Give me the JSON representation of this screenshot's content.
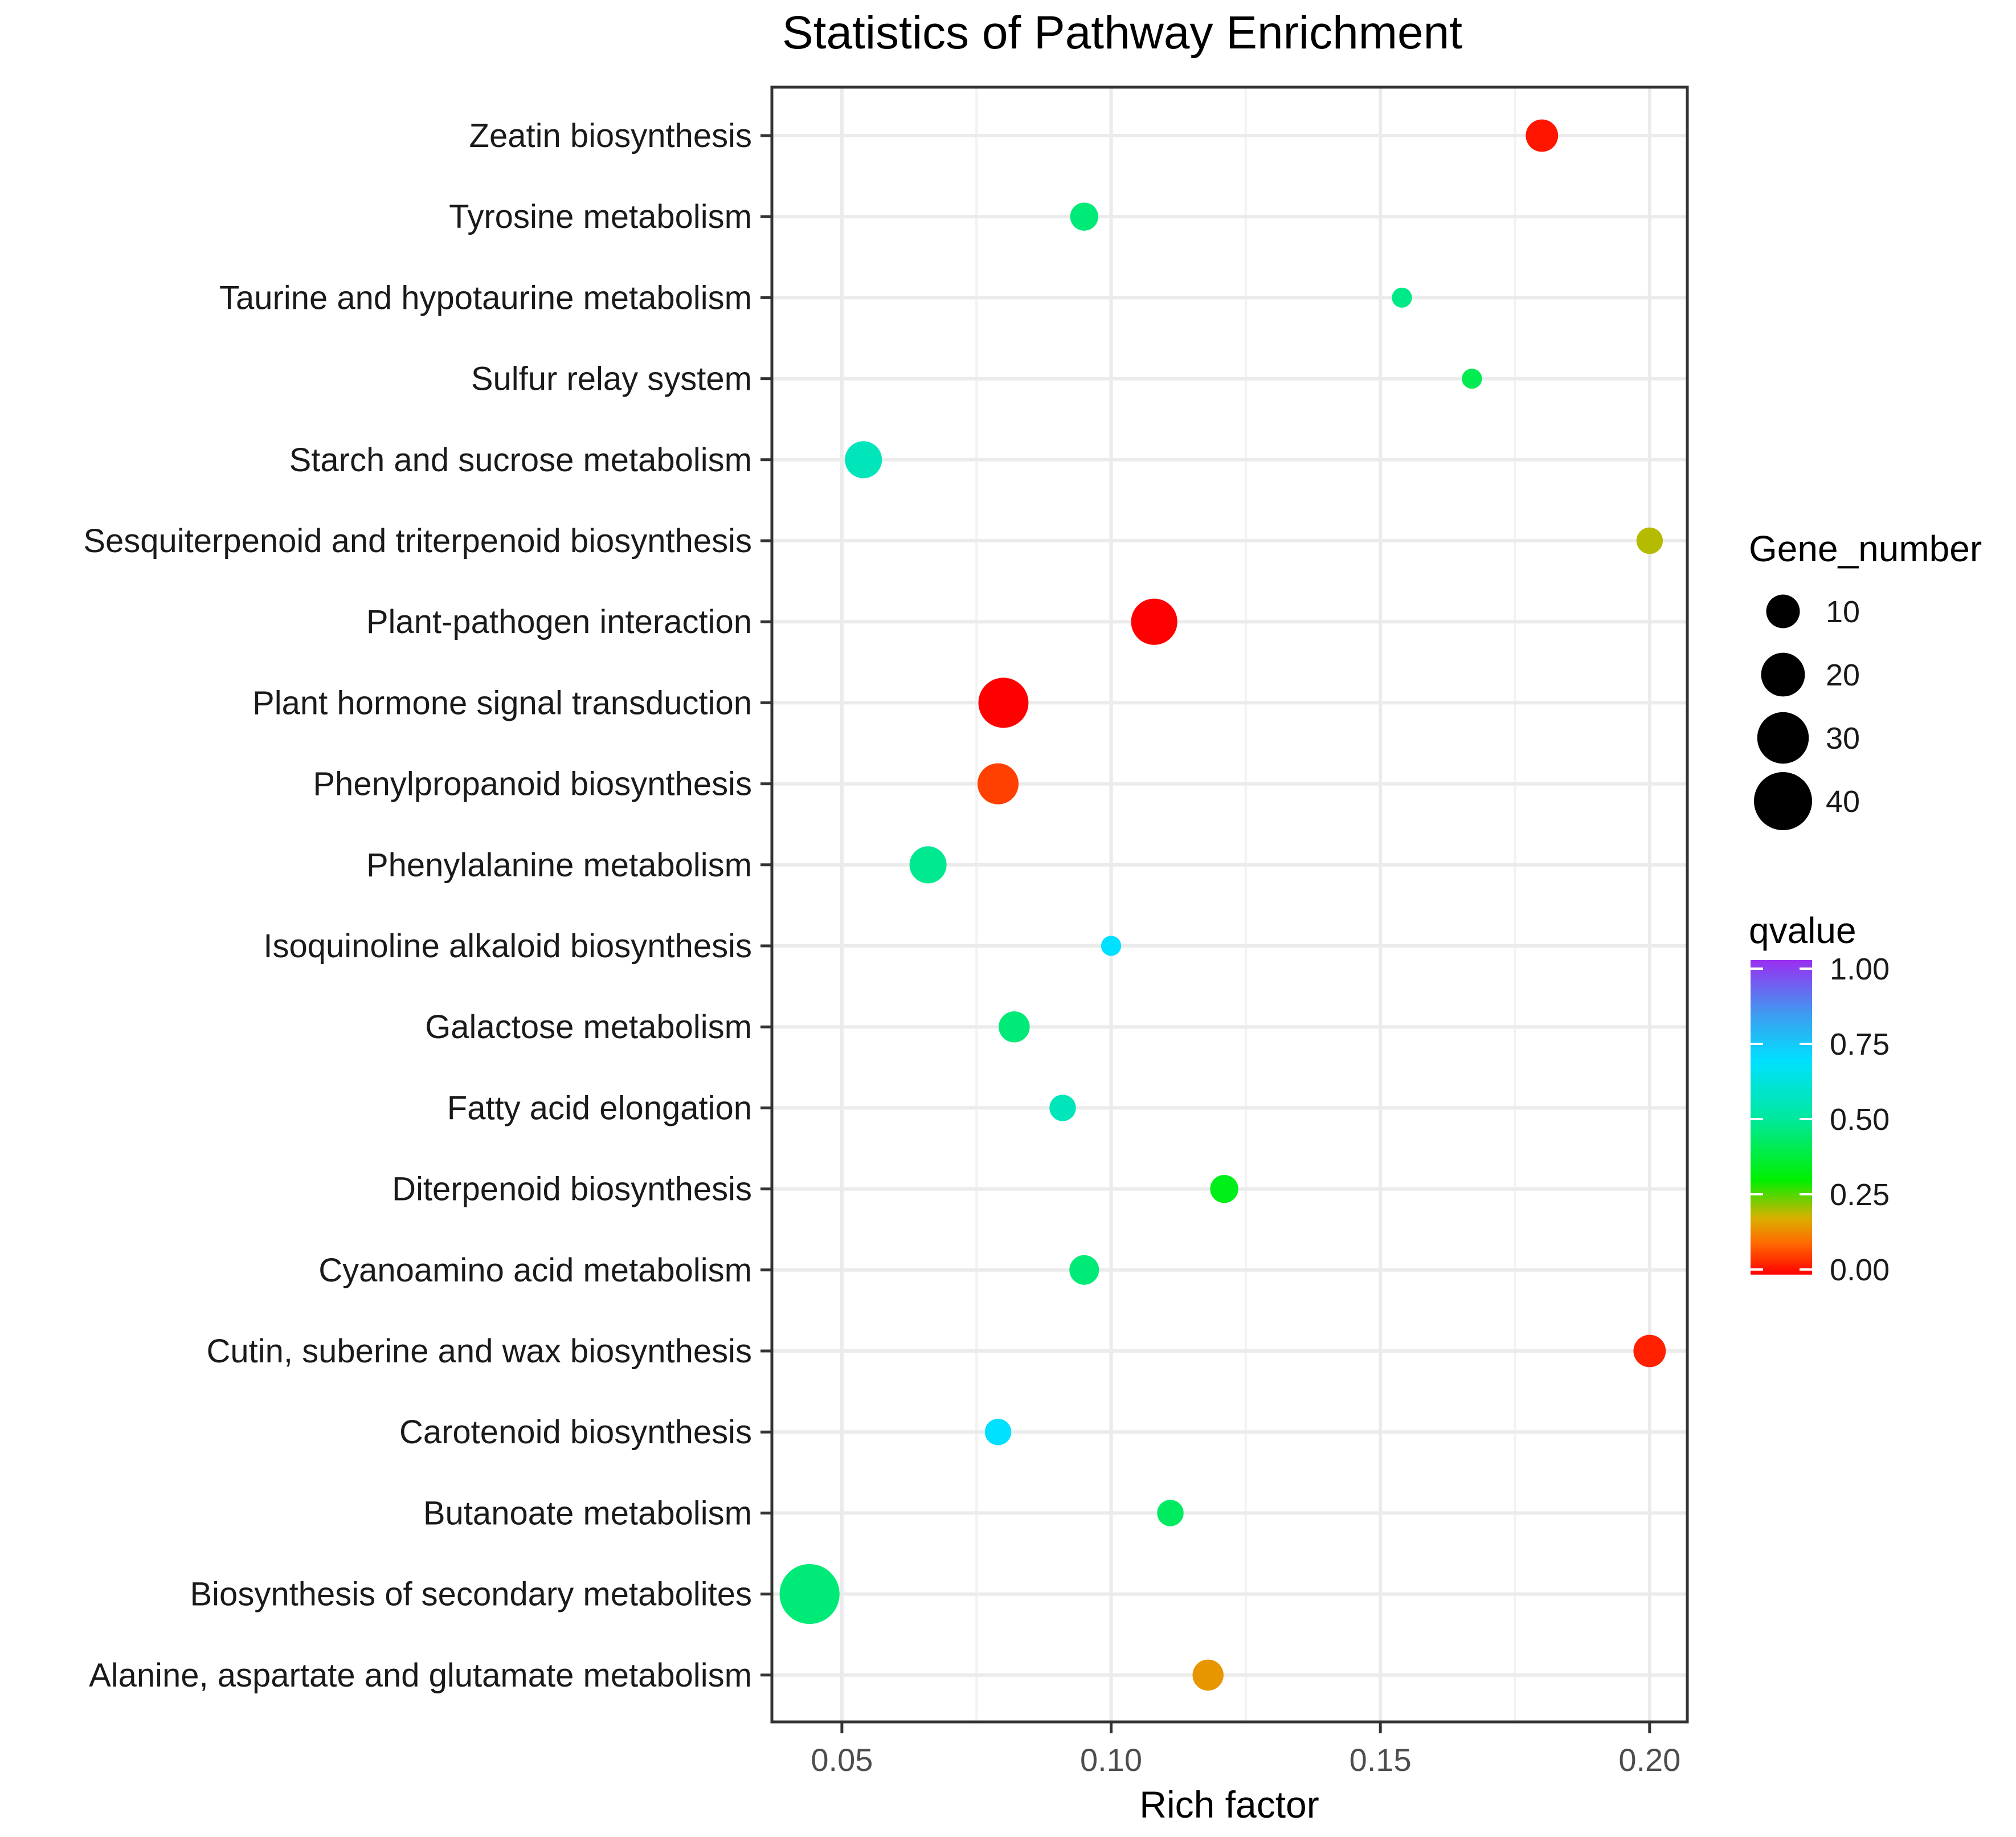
{
  "chart_data": {
    "type": "scatter",
    "title": "Statistics of Pathway Enrichment",
    "xlabel": "Rich factor",
    "ylabel": "",
    "xlim": [
      0.037,
      0.207
    ],
    "xticks": [
      0.05,
      0.1,
      0.15,
      0.2
    ],
    "xtick_labels": [
      "0.05",
      "0.10",
      "0.15",
      "0.20"
    ],
    "grid": true,
    "categories": [
      "Zeatin biosynthesis",
      "Tyrosine metabolism",
      "Taurine and hypotaurine metabolism",
      "Sulfur relay system",
      "Starch and sucrose metabolism",
      "Sesquiterpenoid and triterpenoid biosynthesis",
      "Plant-pathogen interaction",
      "Plant hormone signal transduction",
      "Phenylpropanoid biosynthesis",
      "Phenylalanine metabolism",
      "Isoquinoline alkaloid biosynthesis",
      "Galactose metabolism",
      "Fatty acid elongation",
      "Diterpenoid biosynthesis",
      "Cyanoamino acid metabolism",
      "Cutin, suberine and wax biosynthesis",
      "Carotenoid biosynthesis",
      "Butanoate metabolism",
      "Biosynthesis of secondary metabolites",
      "Alanine, aspartate and glutamate metabolism"
    ],
    "points": [
      {
        "pathway": "Zeatin biosynthesis",
        "rich_factor": 0.18,
        "gene_number": 9,
        "qvalue": 0.02
      },
      {
        "pathway": "Tyrosine metabolism",
        "rich_factor": 0.095,
        "gene_number": 6,
        "qvalue": 0.45
      },
      {
        "pathway": "Taurine and hypotaurine metabolism",
        "rich_factor": 0.154,
        "gene_number": 2,
        "qvalue": 0.47
      },
      {
        "pathway": "Sulfur relay system",
        "rich_factor": 0.167,
        "gene_number": 2,
        "qvalue": 0.4
      },
      {
        "pathway": "Starch and sucrose metabolism",
        "rich_factor": 0.054,
        "gene_number": 13,
        "qvalue": 0.55
      },
      {
        "pathway": "Sesquiterpenoid and triterpenoid biosynthesis",
        "rich_factor": 0.2,
        "gene_number": 5,
        "qvalue": 0.2
      },
      {
        "pathway": "Plant-pathogen interaction",
        "rich_factor": 0.108,
        "gene_number": 23,
        "qvalue": 0.0
      },
      {
        "pathway": "Plant hormone signal transduction",
        "rich_factor": 0.08,
        "gene_number": 28,
        "qvalue": 0.0
      },
      {
        "pathway": "Phenylpropanoid biosynthesis",
        "rich_factor": 0.079,
        "gene_number": 17,
        "qvalue": 0.06
      },
      {
        "pathway": "Phenylalanine metabolism",
        "rich_factor": 0.066,
        "gene_number": 13,
        "qvalue": 0.48
      },
      {
        "pathway": "Isoquinoline alkaloid biosynthesis",
        "rich_factor": 0.1,
        "gene_number": 2,
        "qvalue": 0.68
      },
      {
        "pathway": "Galactose metabolism",
        "rich_factor": 0.082,
        "gene_number": 8,
        "qvalue": 0.45
      },
      {
        "pathway": "Fatty acid elongation",
        "rich_factor": 0.091,
        "gene_number": 5,
        "qvalue": 0.55
      },
      {
        "pathway": "Diterpenoid biosynthesis",
        "rich_factor": 0.121,
        "gene_number": 6,
        "qvalue": 0.33
      },
      {
        "pathway": "Cyanoamino acid metabolism",
        "rich_factor": 0.095,
        "gene_number": 7,
        "qvalue": 0.45
      },
      {
        "pathway": "Cutin, suberine and wax biosynthesis",
        "rich_factor": 0.2,
        "gene_number": 9,
        "qvalue": 0.03
      },
      {
        "pathway": "Carotenoid biosynthesis",
        "rich_factor": 0.079,
        "gene_number": 5,
        "qvalue": 0.68
      },
      {
        "pathway": "Butanoate metabolism",
        "rich_factor": 0.111,
        "gene_number": 5,
        "qvalue": 0.42
      },
      {
        "pathway": "Biosynthesis of secondary metabolites",
        "rich_factor": 0.044,
        "gene_number": 43,
        "qvalue": 0.45
      },
      {
        "pathway": "Alanine, aspartate and glutamate metabolism",
        "rich_factor": 0.118,
        "gene_number": 8,
        "qvalue": 0.15
      }
    ],
    "size_legend": {
      "title": "Gene_number",
      "values": [
        10,
        20,
        30,
        40
      ],
      "labels": [
        "10",
        "20",
        "30",
        "40"
      ]
    },
    "color_legend": {
      "title": "qvalue",
      "range": [
        0.0,
        1.0
      ],
      "ticks": [
        1.0,
        0.75,
        0.5,
        0.25,
        0.0
      ],
      "labels": [
        "1.00",
        "0.75",
        "0.50",
        "0.25",
        "0.00"
      ],
      "gradient": [
        "#ff0000",
        "#ff8c00",
        "#ffd700",
        "#00ff00",
        "#00e5a0",
        "#00e5ff",
        "#2a9df4",
        "#8a2be2"
      ]
    }
  }
}
